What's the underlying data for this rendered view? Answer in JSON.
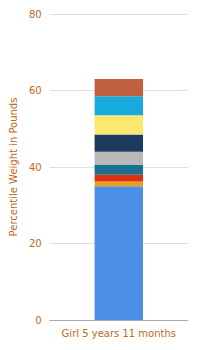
{
  "chart_data": {
    "type": "bar",
    "categories": [
      "Girl 5 years 11 months"
    ],
    "series": [
      {
        "color": "#4d8fe8",
        "values": [
          35.0
        ]
      },
      {
        "color": "#e8a020",
        "values": [
          1.2
        ]
      },
      {
        "color": "#e03010",
        "values": [
          1.8
        ]
      },
      {
        "color": "#1a7090",
        "values": [
          2.5
        ]
      },
      {
        "color": "#b8b8b8",
        "values": [
          3.5
        ]
      },
      {
        "color": "#1e3a5f",
        "values": [
          4.5
        ]
      },
      {
        "color": "#fce870",
        "values": [
          5.0
        ]
      },
      {
        "color": "#18aadc",
        "values": [
          5.0
        ]
      },
      {
        "color": "#c06040",
        "values": [
          4.5
        ]
      }
    ],
    "stacked": true,
    "ylabel": "Percentile Weight in Pounds",
    "ylim": [
      0,
      80
    ],
    "yticks": [
      0,
      20,
      40,
      60,
      80
    ],
    "grid": true
  }
}
